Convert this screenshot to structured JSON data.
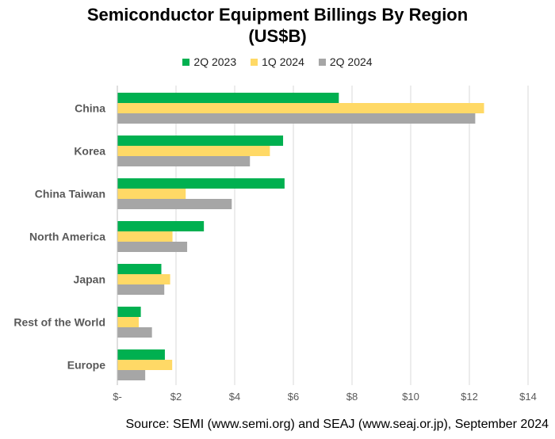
{
  "title_line1": "Semiconductor Equipment Billings By Region",
  "title_line2": "(US$B)",
  "source": "Source: SEMI (www.semi.org) and SEAJ (www.seaj.or.jp), September 2024",
  "chart_data": {
    "type": "bar",
    "orientation": "horizontal",
    "categories": [
      "China",
      "Korea",
      "China Taiwan",
      "North America",
      "Japan",
      "Rest of the World",
      "Europe"
    ],
    "series": [
      {
        "name": "2Q 2023",
        "color": "#00b050",
        "values": [
          7.55,
          5.65,
          5.7,
          2.95,
          1.5,
          0.8,
          1.62
        ]
      },
      {
        "name": "1Q 2024",
        "color": "#ffd966",
        "values": [
          12.5,
          5.2,
          2.33,
          1.88,
          1.8,
          0.73,
          1.87
        ]
      },
      {
        "name": "2Q 2024",
        "color": "#a6a6a6",
        "values": [
          12.2,
          4.52,
          3.9,
          2.38,
          1.6,
          1.18,
          0.95
        ]
      }
    ],
    "xlim": [
      0,
      14
    ],
    "xticks": [
      0,
      2,
      4,
      6,
      8,
      10,
      12,
      14
    ],
    "xtick_labels": [
      "$-",
      "$2",
      "$4",
      "$6",
      "$8",
      "$10",
      "$12",
      "$14"
    ],
    "grid": "vertical",
    "legend_position": "top"
  }
}
